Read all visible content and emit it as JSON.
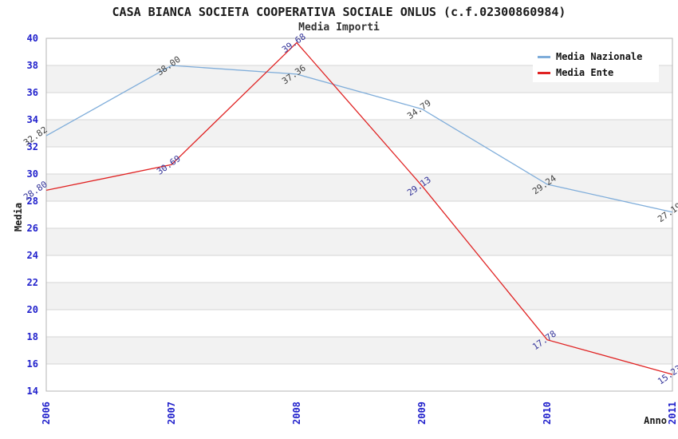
{
  "header": {
    "title": "CASA BIANCA SOCIETA COOPERATIVA SOCIALE ONLUS (c.f.02300860984)",
    "subtitle": "Media Importi"
  },
  "chart_data": {
    "type": "line",
    "title": "CASA BIANCA SOCIETA COOPERATIVA SOCIALE ONLUS (c.f.02300860984)",
    "subtitle": "Media Importi",
    "xlabel": "Anno",
    "ylabel": "Media",
    "categories": [
      "2006",
      "2007",
      "2008",
      "2009",
      "2010",
      "2011"
    ],
    "series": [
      {
        "name": "Media Nazionale",
        "color": "#7fadda",
        "label_color": "#404040",
        "values": [
          32.82,
          38.0,
          37.36,
          34.79,
          29.24,
          27.19
        ]
      },
      {
        "name": "Media Ente",
        "color": "#e02222",
        "label_color": "#333399",
        "values": [
          28.8,
          30.69,
          39.68,
          29.13,
          17.78,
          15.23
        ]
      }
    ],
    "ylim": [
      14,
      40
    ],
    "ytick_step": 2,
    "grid": "horizontal-bands",
    "legend_position": "top-right",
    "band_color": "#f2f2f2",
    "gridline_color": "#d6d6d6",
    "border_color": "#b4b4b4",
    "tick_label_color": "#2222cc",
    "axis_title_color": "#1a1a1a"
  }
}
